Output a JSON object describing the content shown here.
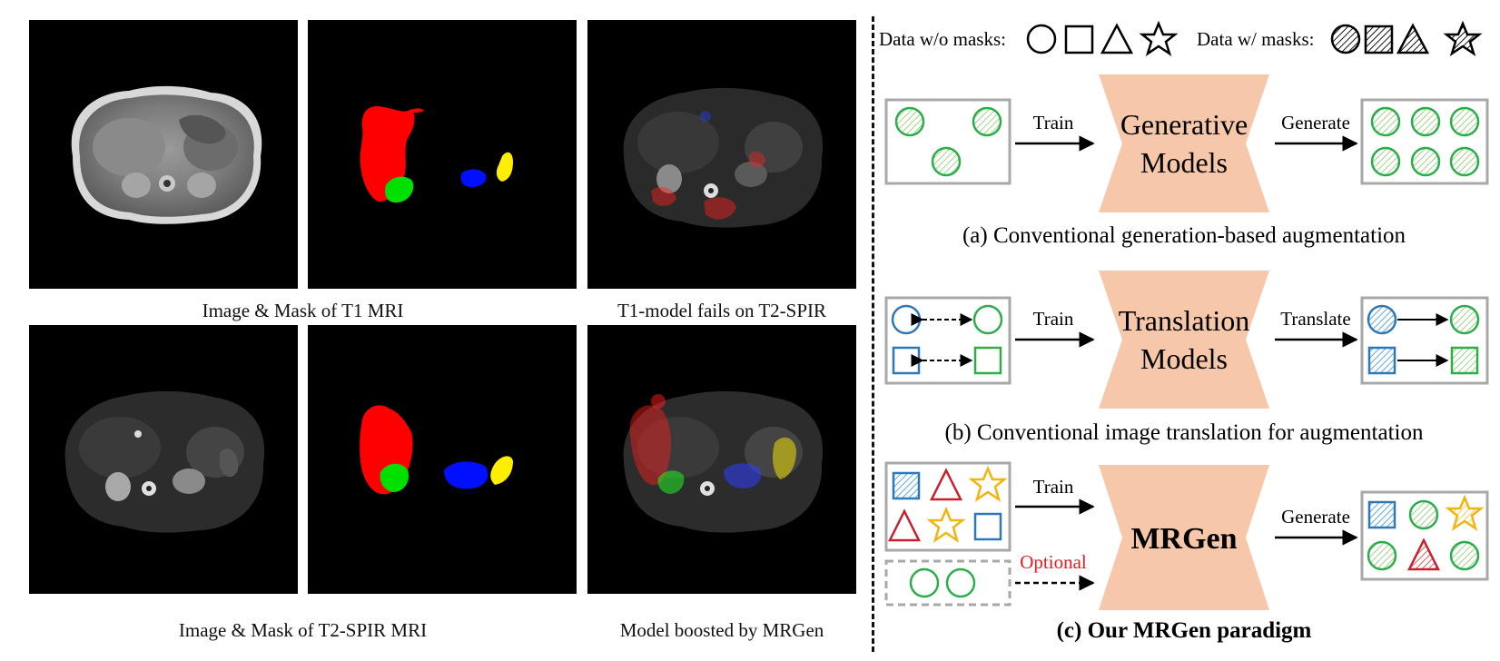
{
  "left": {
    "captions": {
      "row1_left": "Image & Mask of T1 MRI",
      "row1_right": "T1-model fails on T2-SPIR",
      "row2_left": "Image & Mask of T2-SPIR MRI",
      "row2_right": "Model boosted by MRGen"
    }
  },
  "legend": {
    "without": "Data w/o masks:",
    "with": "Data w/ masks:"
  },
  "sections": {
    "a": {
      "model_line1": "Generative",
      "model_line2": "Models",
      "in_arrow": "Train",
      "out_arrow": "Generate",
      "caption": "(a) Conventional generation-based augmentation"
    },
    "b": {
      "model_line1": "Translation",
      "model_line2": "Models",
      "in_arrow": "Train",
      "out_arrow": "Translate",
      "caption": "(b) Conventional image translation for augmentation"
    },
    "c": {
      "model_line1": "MRGen",
      "in_arrow": "Train",
      "optional": "Optional",
      "out_arrow": "Generate",
      "caption": "(c) Our MRGen paradigm"
    }
  },
  "colors": {
    "green": "#2bae4a",
    "blue": "#2f78b7",
    "red": "#c8202b",
    "yellow": "#f2b40f",
    "model_fill": "#f6c7a9",
    "box_border": "#a8a8a8",
    "mask_red": "#ff0000",
    "mask_green": "#00e000",
    "mask_blue": "#0010ff",
    "mask_yellow": "#ffee00",
    "optional_text": "#e51c23"
  }
}
